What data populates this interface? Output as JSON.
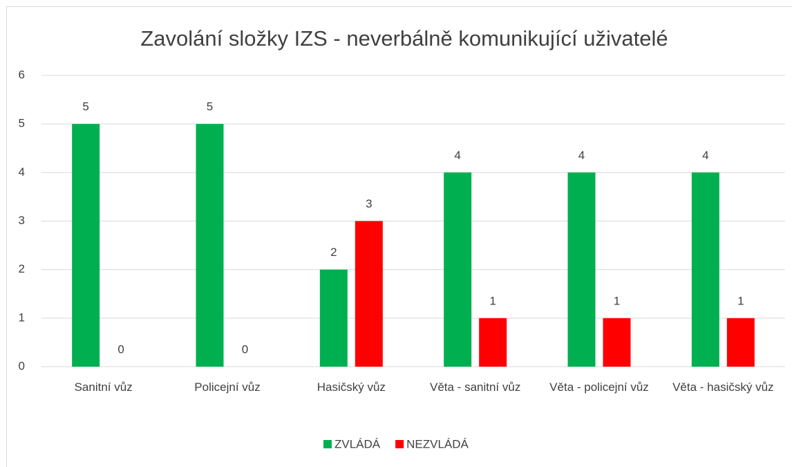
{
  "chart_data": {
    "type": "bar",
    "title": "Zavolání složky IZS - neverbálně komunikující uživatelé",
    "categories": [
      "Sanitní vůz",
      "Policejní vůz",
      "Hasičský vůz",
      "Věta - sanitní vůz",
      "Věta - policejní vůz",
      "Věta - hasičský vůz"
    ],
    "series": [
      {
        "name": "ZVLÁDÁ",
        "color": "#00b050",
        "values": [
          5,
          5,
          2,
          4,
          4,
          4
        ]
      },
      {
        "name": "NEZVLÁDÁ",
        "color": "#ff0000",
        "values": [
          0,
          0,
          3,
          1,
          1,
          1
        ]
      }
    ],
    "ylim": [
      0,
      6
    ],
    "yticks": [
      0,
      1,
      2,
      3,
      4,
      5,
      6
    ],
    "grid": true,
    "legend": "bottom"
  }
}
